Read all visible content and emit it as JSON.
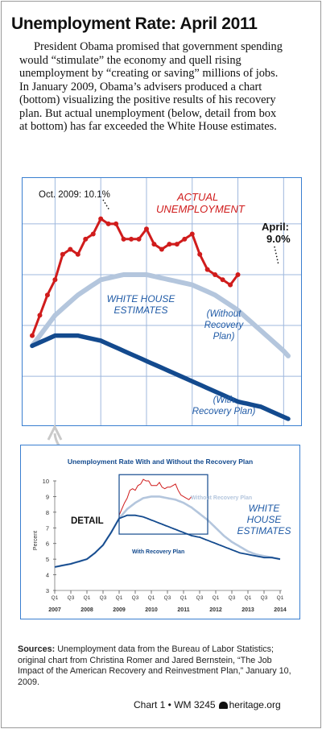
{
  "header": {
    "title": "Unemployment Rate: April 2011",
    "intro": "President Obama promised that government spending would “stimulate” the economy and quell rising unemployment by “creating or saving” millions of jobs. In January 2009, Obama’s advisers produced a chart (bottom) visualizing the positive results of his recovery plan. But actual unemployment (below, detail from box at bottom) has far exceeded the White House estimates."
  },
  "colors": {
    "actual": "#d01c1c",
    "without_plan": "#b4c6dd",
    "with_plan": "#134a8e",
    "annotation_blue": "#1f5aa6",
    "frame_blue": "#3a7fd0",
    "grid": "#9fb8dd"
  },
  "detail": {
    "actual_label_line1": "ACTUAL",
    "actual_label_line2": "UNEMPLOYMENT",
    "oct_label": "Oct. 2009: 10.1%",
    "april_label_line1": "April:",
    "april_label_line2": "9.0%",
    "wh_label_line1": "WHITE HOUSE",
    "wh_label_line2": "ESTIMATES",
    "without_line1": "(Without",
    "without_line2": "Recovery",
    "without_line3": "Plan)",
    "with_line1": "(With",
    "with_line2": "Recovery Plan)"
  },
  "overview": {
    "detail_label": "DETAIL",
    "without_label": "Without Recovery Plan",
    "with_label": "With Recovery Plan",
    "wh_line1": "WHITE",
    "wh_line2": "HOUSE",
    "wh_line3": "ESTIMATES"
  },
  "chart_data": {
    "type": "line",
    "title": "Unemployment Rate With and Without the Recovery Plan",
    "ylabel": "Percent",
    "ylim": [
      3,
      10
    ],
    "yticks": [
      3,
      4,
      5,
      6,
      7,
      8,
      9,
      10
    ],
    "x_quarter_labels": [
      "Q1",
      "Q3",
      "Q1",
      "Q3",
      "Q1",
      "Q3",
      "Q1",
      "Q3",
      "Q1",
      "Q3",
      "Q1",
      "Q3",
      "Q1",
      "Q3",
      "Q1"
    ],
    "x_year_labels": [
      "2007",
      "2008",
      "2009",
      "2010",
      "2011",
      "2012",
      "2013",
      "2014"
    ],
    "series": [
      {
        "name": "Without Recovery Plan",
        "x": [
          2007.0,
          2007.5,
          2008.0,
          2008.25,
          2008.5,
          2008.75,
          2009.0,
          2009.25,
          2009.5,
          2009.75,
          2010.0,
          2010.25,
          2010.5,
          2010.75,
          2011.0,
          2011.25,
          2011.5,
          2011.75,
          2012.0,
          2012.25,
          2012.5,
          2012.75,
          2013.0,
          2013.25,
          2013.5,
          2013.75,
          2014.0
        ],
        "values": [
          4.5,
          4.7,
          5.0,
          5.4,
          5.9,
          6.7,
          7.6,
          8.2,
          8.6,
          8.9,
          9.0,
          9.0,
          8.9,
          8.8,
          8.6,
          8.3,
          7.9,
          7.5,
          7.0,
          6.5,
          6.1,
          5.8,
          5.5,
          5.3,
          5.2,
          5.1,
          5.0
        ]
      },
      {
        "name": "With Recovery Plan",
        "x": [
          2007.0,
          2007.5,
          2008.0,
          2008.25,
          2008.5,
          2008.75,
          2009.0,
          2009.25,
          2009.5,
          2009.75,
          2010.0,
          2010.25,
          2010.5,
          2010.75,
          2011.0,
          2011.25,
          2011.5,
          2011.75,
          2012.0,
          2012.25,
          2012.5,
          2012.75,
          2013.0,
          2013.25,
          2013.5,
          2013.75,
          2014.0
        ],
        "values": [
          4.5,
          4.7,
          5.0,
          5.4,
          5.9,
          6.7,
          7.6,
          7.8,
          7.8,
          7.7,
          7.5,
          7.3,
          7.1,
          6.9,
          6.7,
          6.5,
          6.4,
          6.2,
          6.0,
          5.8,
          5.6,
          5.4,
          5.3,
          5.2,
          5.1,
          5.1,
          5.0
        ]
      },
      {
        "name": "Actual Unemployment",
        "x": [
          2009.0,
          2009.0833,
          2009.1667,
          2009.25,
          2009.3333,
          2009.4167,
          2009.5,
          2009.5833,
          2009.6667,
          2009.75,
          2009.8333,
          2009.9167,
          2010.0,
          2010.0833,
          2010.1667,
          2010.25,
          2010.3333,
          2010.4167,
          2010.5,
          2010.5833,
          2010.6667,
          2010.75,
          2010.8333,
          2010.9167,
          2011.0,
          2011.0833,
          2011.1667,
          2011.25
        ],
        "values": [
          7.8,
          8.2,
          8.6,
          8.9,
          9.4,
          9.5,
          9.4,
          9.7,
          9.8,
          10.1,
          10.0,
          10.0,
          9.7,
          9.7,
          9.7,
          9.9,
          9.6,
          9.5,
          9.6,
          9.6,
          9.7,
          9.8,
          9.4,
          9.1,
          9.0,
          8.9,
          8.8,
          9.0
        ]
      }
    ]
  },
  "sources": {
    "label": "Sources:",
    "text": " Unemployment data from the Bureau of Labor Statistics; original chart from Christina Romer and Jared Bernstein, “The Job Impact of the American Recovery and Reinvestment Plan,” January 10, 2009."
  },
  "footer": {
    "chart_id": "Chart 1 • WM 3245",
    "site": "heritage.org"
  }
}
